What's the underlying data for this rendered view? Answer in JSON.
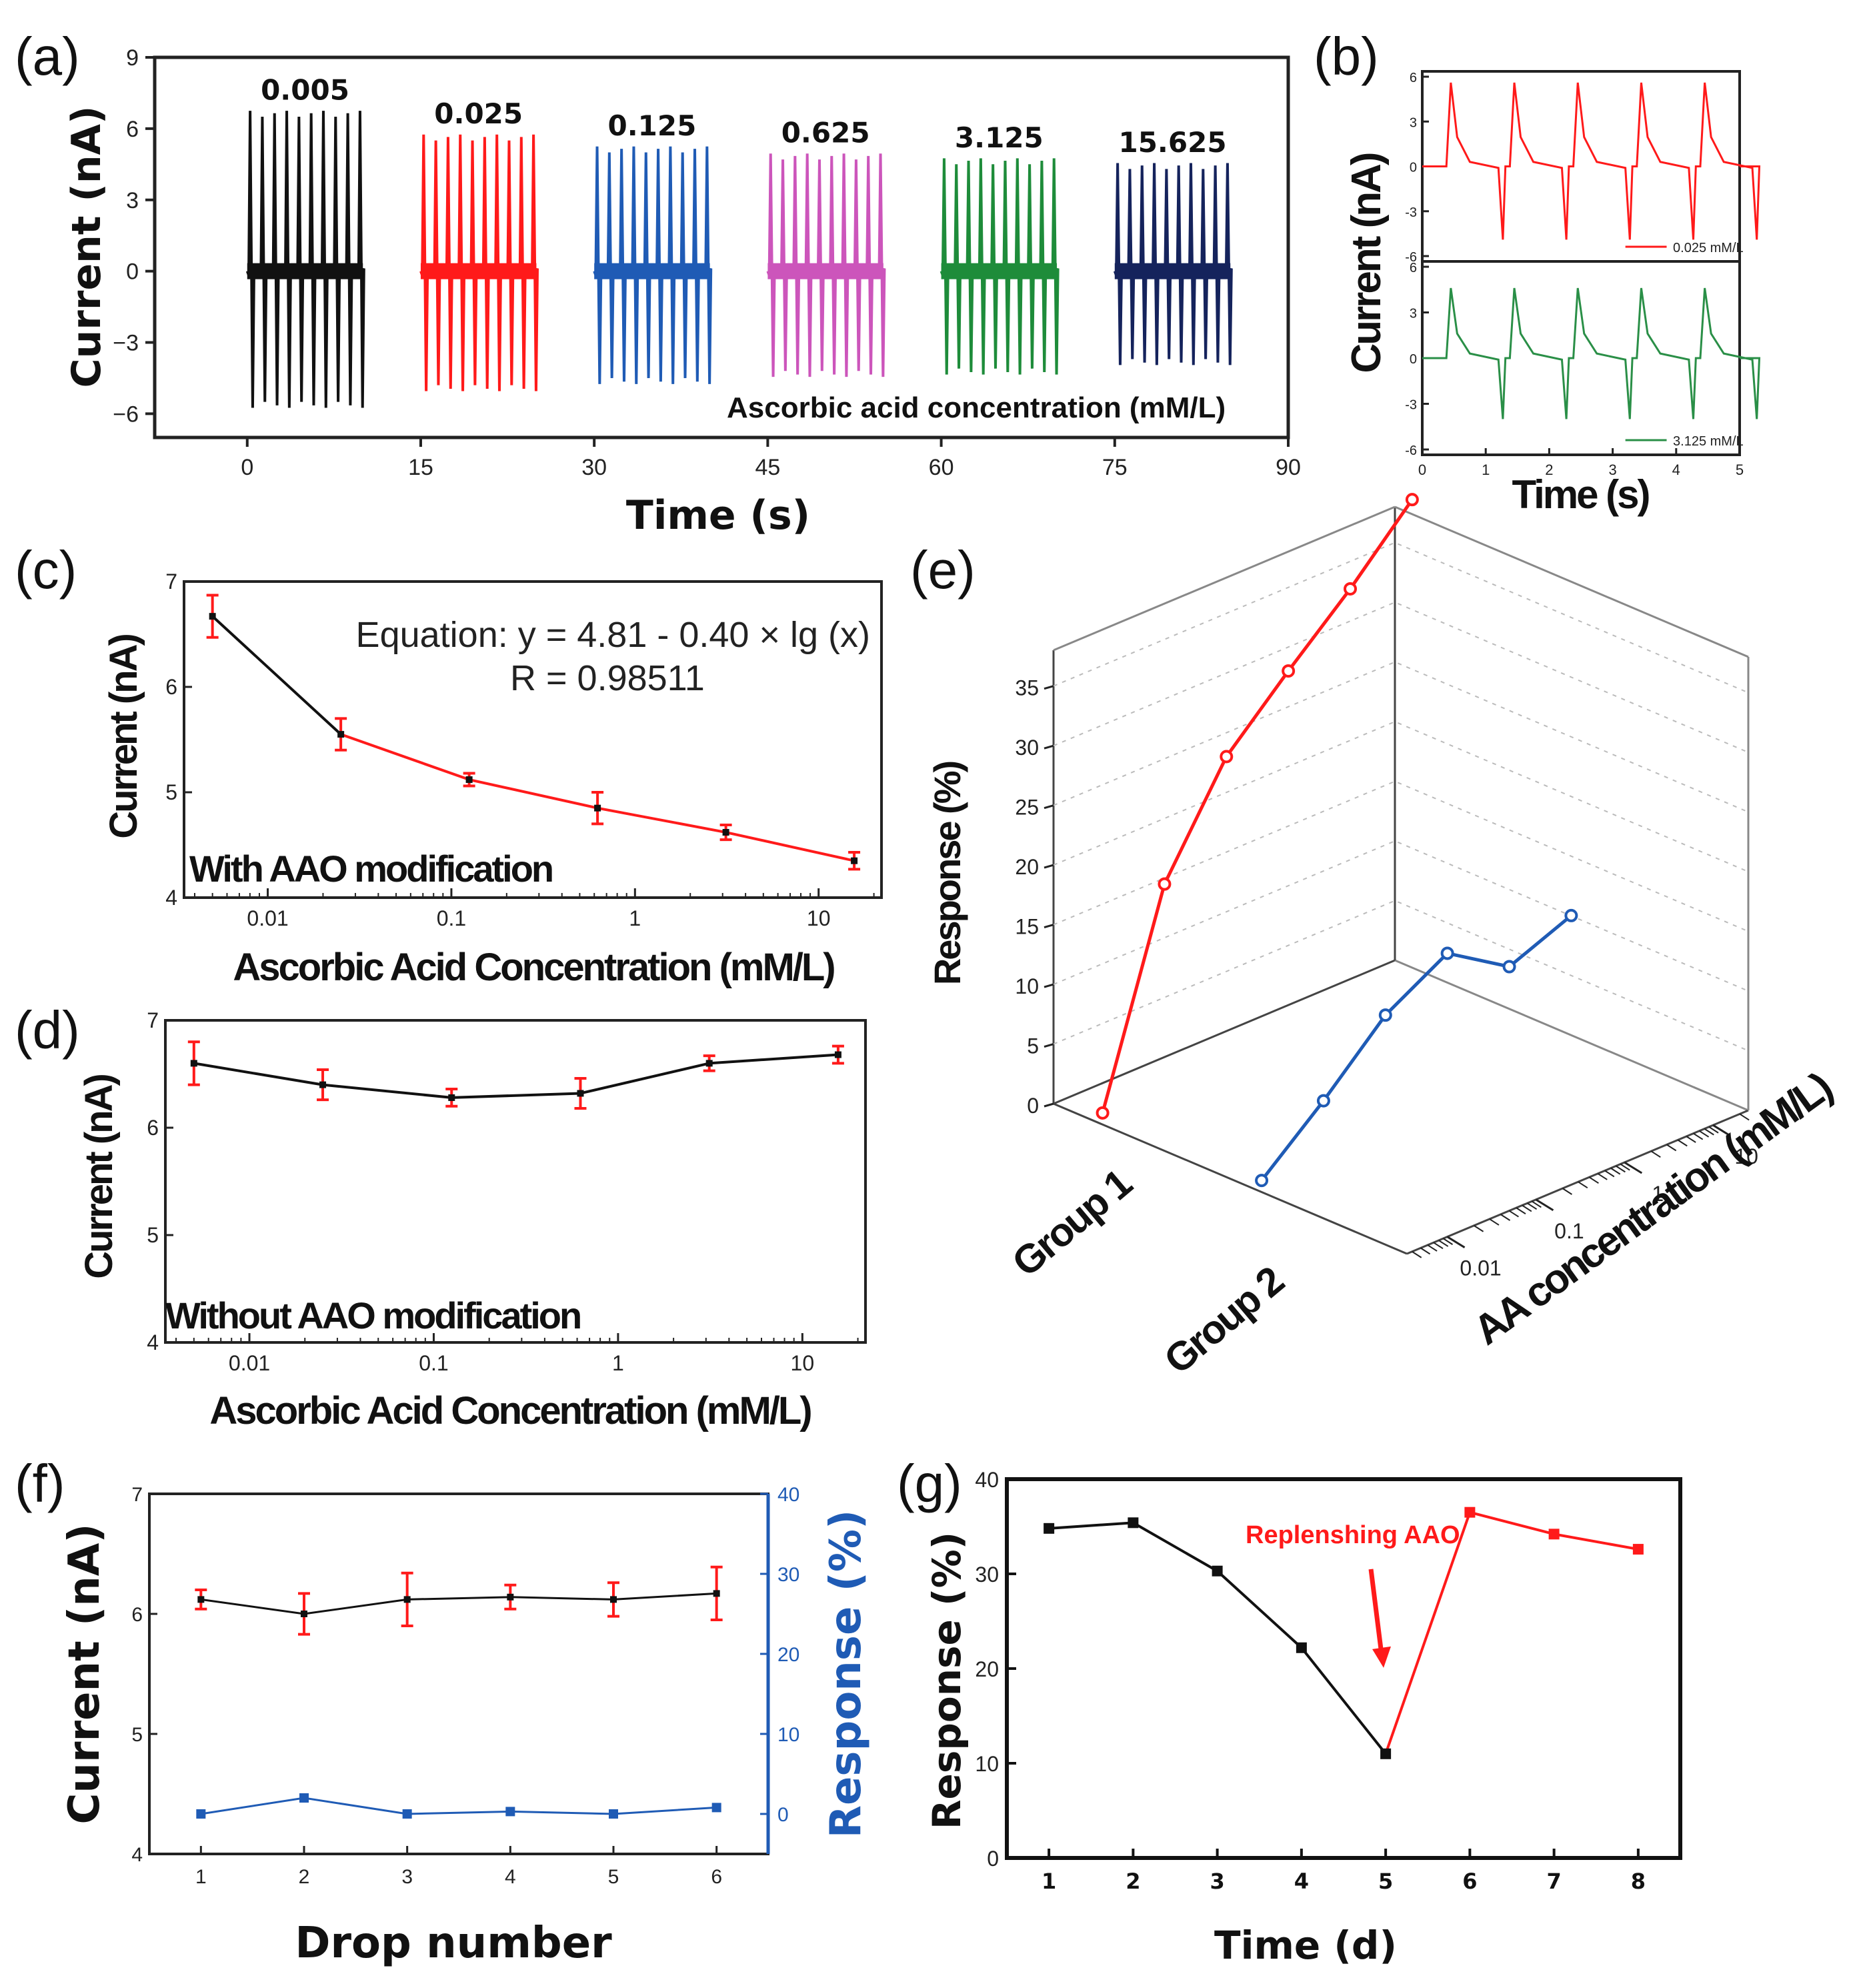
{
  "panel_labels": [
    "(a)",
    "(b)",
    "(c)",
    "(d)",
    "(e)",
    "(f)",
    "(g)"
  ],
  "colors": {
    "black": "#111111",
    "red": "#ff1a1a",
    "blue": "#1f5bb5",
    "magenta": "#cc55bb",
    "green": "#1e8c3a",
    "navy": "#15235c",
    "b_green": "#2a8f47",
    "resp_blue": "#1f5bb5"
  },
  "chart_data": [
    {
      "id": "a",
      "type": "line",
      "title": "",
      "xlabel": "Time (s)",
      "ylabel": "Current (nA)",
      "xlim": [
        -8,
        90
      ],
      "ylim": [
        -7,
        9
      ],
      "xticks": [
        "0",
        "15",
        "30",
        "45",
        "60",
        "75",
        "90"
      ],
      "yticks": [
        "−6",
        "−3",
        "0",
        "3",
        "6",
        "9"
      ],
      "annotation": "Ascorbic acid concentration (mM/L)",
      "series": [
        {
          "name": "0.005",
          "start": 0,
          "end": 10,
          "peak": 6.6,
          "trough": -5.6,
          "color_key": "black"
        },
        {
          "name": "0.025",
          "start": 15,
          "end": 25,
          "peak": 5.6,
          "trough": -4.9,
          "color_key": "red"
        },
        {
          "name": "0.125",
          "start": 30,
          "end": 40,
          "peak": 5.1,
          "trough": -4.6,
          "color_key": "blue"
        },
        {
          "name": "0.625",
          "start": 45,
          "end": 55,
          "peak": 4.8,
          "trough": -4.3,
          "color_key": "magenta"
        },
        {
          "name": "3.125",
          "start": 60,
          "end": 70,
          "peak": 4.6,
          "trough": -4.2,
          "color_key": "green"
        },
        {
          "name": "15.625",
          "start": 75,
          "end": 85,
          "peak": 4.4,
          "trough": -3.8,
          "color_key": "navy"
        }
      ]
    },
    {
      "id": "b",
      "type": "line",
      "xlabel": "Time (s)",
      "ylabel": "Current (nA)",
      "xlim": [
        0,
        5
      ],
      "xticks": [
        "0",
        "1",
        "2",
        "3",
        "4",
        "5"
      ],
      "subplots": [
        {
          "legend": "0.025 mM/L",
          "color_key": "red",
          "yticks": [
            "-6",
            "-3",
            "0",
            "3",
            "6"
          ],
          "ylim": [
            -6,
            6
          ],
          "peak": 5.6,
          "trough": -4.9
        },
        {
          "legend": "3.125 mM/L",
          "color_key": "b_green",
          "yticks": [
            "-6",
            "-3",
            "0",
            "3",
            "6"
          ],
          "ylim": [
            -6,
            6
          ],
          "peak": 4.6,
          "trough": -4.0
        }
      ]
    },
    {
      "id": "c",
      "type": "line",
      "xscale": "log",
      "xlabel": "Ascorbic Acid Concentration (mM/L)",
      "ylabel": "Current (nA)",
      "xlim": [
        0.0035,
        22
      ],
      "ylim": [
        4,
        7
      ],
      "xticks": [
        {
          "v": 0.01,
          "t": "0.01"
        },
        {
          "v": 0.1,
          "t": "0.1"
        },
        {
          "v": 1,
          "t": "1"
        },
        {
          "v": 10,
          "t": "10"
        }
      ],
      "yticks": [
        {
          "v": 4,
          "t": "4"
        },
        {
          "v": 5,
          "t": "5"
        },
        {
          "v": 6,
          "t": "6"
        },
        {
          "v": 7,
          "t": "7"
        }
      ],
      "x": [
        0.005,
        0.025,
        0.125,
        0.625,
        3.125,
        15.625
      ],
      "y": [
        6.67,
        5.55,
        5.12,
        4.85,
        4.62,
        4.35
      ],
      "err": [
        0.2,
        0.15,
        0.06,
        0.15,
        0.07,
        0.08
      ],
      "equation": "Equation: y = 4.81 - 0.40 × lg (x)",
      "r_value": "R = 0.98511",
      "label": "With AAO modification"
    },
    {
      "id": "d",
      "type": "line",
      "xscale": "log",
      "xlabel": "Ascorbic Acid Concentration (mM/L)",
      "ylabel": "Current (nA)",
      "xlim": [
        0.0035,
        22
      ],
      "ylim": [
        4,
        7
      ],
      "xticks": [
        {
          "v": 0.01,
          "t": "0.01"
        },
        {
          "v": 0.1,
          "t": "0.1"
        },
        {
          "v": 1,
          "t": "1"
        },
        {
          "v": 10,
          "t": "10"
        }
      ],
      "yticks": [
        {
          "v": 4,
          "t": "4"
        },
        {
          "v": 5,
          "t": "5"
        },
        {
          "v": 6,
          "t": "6"
        },
        {
          "v": 7,
          "t": "7"
        }
      ],
      "x": [
        0.005,
        0.025,
        0.125,
        0.625,
        3.125,
        15.625
      ],
      "y": [
        6.6,
        6.4,
        6.28,
        6.32,
        6.6,
        6.68
      ],
      "err": [
        0.2,
        0.14,
        0.08,
        0.14,
        0.07,
        0.08
      ],
      "label": "Without AAO modification"
    },
    {
      "id": "e",
      "type": "line",
      "projection": "3d",
      "zlabel": "Response (%)",
      "xlabel": "AA concentration (mM/L)",
      "zticks": [
        "0",
        "5",
        "10",
        "15",
        "20",
        "25",
        "30",
        "35"
      ],
      "xticks": [
        "0.01",
        "0.1",
        "1",
        "10"
      ],
      "groups": [
        "Group 1",
        "Group 2"
      ],
      "x": [
        0.005,
        0.025,
        0.125,
        0.625,
        3.125,
        15.625
      ],
      "series": [
        {
          "name": "Group 1",
          "values": [
            0,
            17,
            25.5,
            30.5,
            35.2,
            40.5
          ],
          "color_key": "red"
        },
        {
          "name": "Group 2",
          "values": [
            0,
            4.5,
            9.5,
            12.5,
            9.2,
            11.3
          ],
          "color_key": "blue"
        }
      ]
    },
    {
      "id": "f",
      "type": "line",
      "xlabel": "Drop number",
      "ylabel": "Current (nA)",
      "y2label": "Response (%)",
      "xlim": [
        0.5,
        6.5
      ],
      "ylim": [
        4,
        7
      ],
      "y2lim": [
        -5,
        40
      ],
      "xticks": [
        1,
        2,
        3,
        4,
        5,
        6
      ],
      "yticks": [
        "4",
        "5",
        "6",
        "7"
      ],
      "y2ticks": [
        "0",
        "10",
        "20",
        "30",
        "40"
      ],
      "x": [
        1,
        2,
        3,
        4,
        5,
        6
      ],
      "current": [
        6.12,
        6.0,
        6.12,
        6.14,
        6.12,
        6.17
      ],
      "current_err": [
        0.08,
        0.17,
        0.22,
        0.1,
        0.14,
        0.22
      ],
      "response": [
        0,
        2.0,
        0,
        0.3,
        0,
        0.8
      ]
    },
    {
      "id": "g",
      "type": "line",
      "xlabel": "Time (d)",
      "ylabel": "Response (%)",
      "xlim": [
        0.5,
        8.5
      ],
      "ylim": [
        0,
        40
      ],
      "xticks": [
        1,
        2,
        3,
        4,
        5,
        6,
        7,
        8
      ],
      "yticks": [
        "0",
        "10",
        "20",
        "30",
        "40"
      ],
      "x": [
        1,
        2,
        3,
        4,
        5,
        6,
        7,
        8
      ],
      "y": [
        34.8,
        35.4,
        30.3,
        22.2,
        11.0,
        36.5,
        34.2,
        32.6
      ],
      "annotation": "Replenshing AAO"
    }
  ]
}
